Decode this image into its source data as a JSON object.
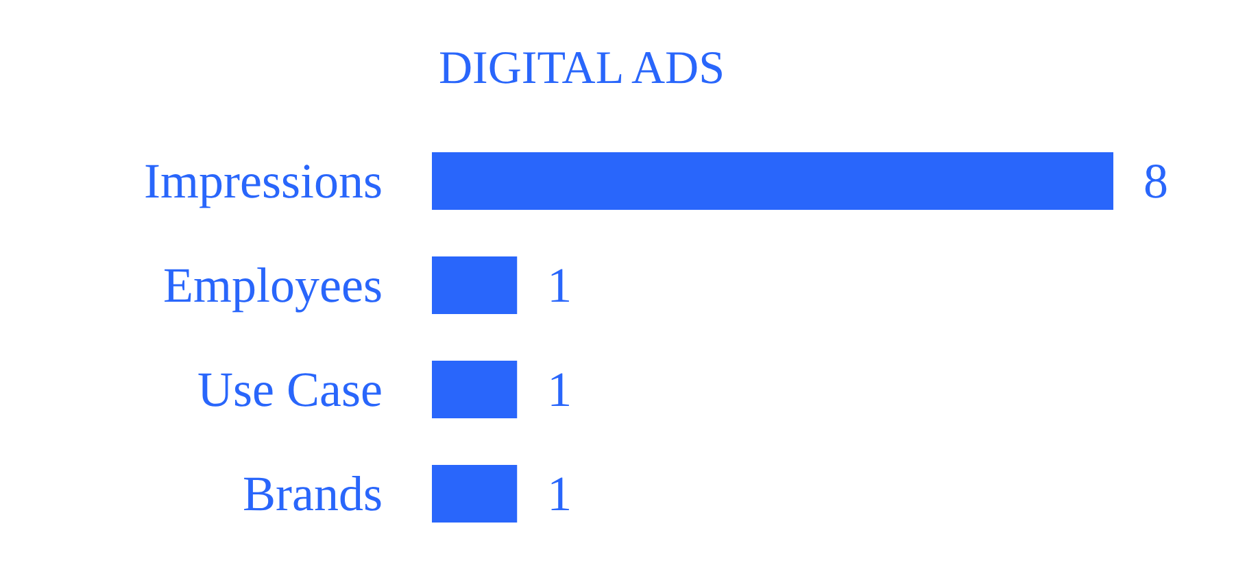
{
  "chart_data": {
    "type": "bar",
    "orientation": "horizontal",
    "title": "DIGITAL ADS",
    "categories": [
      "Impressions",
      "Employees",
      "Use Case",
      "Brands"
    ],
    "values": [
      8,
      1,
      1,
      1
    ],
    "color": "#2966fb",
    "data_labels": true,
    "tick_labels": "y"
  }
}
